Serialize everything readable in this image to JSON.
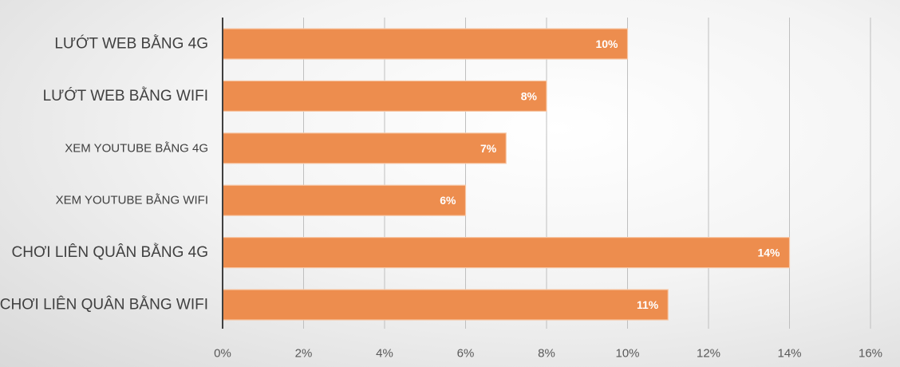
{
  "chart_data": {
    "type": "bar",
    "orientation": "horizontal",
    "categories": [
      "LƯỚT WEB BẰNG 4G",
      "LƯỚT WEB BẰNG WIFI",
      "XEM YOUTUBE BẰNG 4G",
      "XEM YOUTUBE BẰNG WIFI",
      "CHƠI LIÊN QUÂN BẰNG 4G",
      "CHƠI LIÊN QUÂN BẰNG WIFI"
    ],
    "values": [
      10,
      8,
      7,
      6,
      14,
      11
    ],
    "value_labels": [
      "10%",
      "8%",
      "7%",
      "6%",
      "14%",
      "11%"
    ],
    "xlim": [
      0,
      16
    ],
    "x_ticks": [
      0,
      2,
      4,
      6,
      8,
      10,
      12,
      14,
      16
    ],
    "x_tick_labels": [
      "0%",
      "2%",
      "4%",
      "6%",
      "8%",
      "10%",
      "12%",
      "14%",
      "16%"
    ],
    "grid": true,
    "legend": "none",
    "bar_color": "#ed8d4e",
    "bar_edge_color": "#f7c7a6",
    "gridline_color": "#bfbfbf",
    "axis_color": "#404040"
  }
}
